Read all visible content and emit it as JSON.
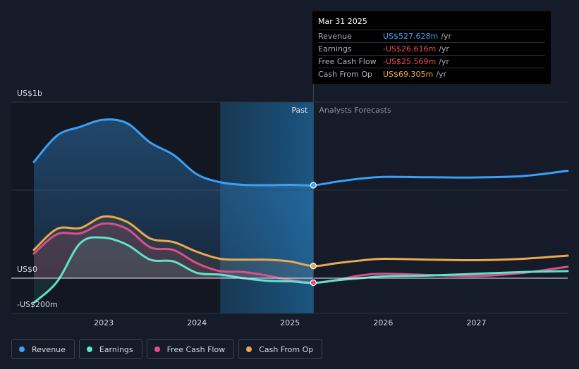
{
  "tooltip": {
    "date": "Mar 31 2025",
    "rows": [
      {
        "label": "Revenue",
        "value": "US$527.628m",
        "unit": "/yr",
        "color": "#3ba0f5"
      },
      {
        "label": "Earnings",
        "value": "-US$26.616m",
        "unit": "/yr",
        "color": "#f04e4e"
      },
      {
        "label": "Free Cash Flow",
        "value": "-US$25.569m",
        "unit": "/yr",
        "color": "#f04e4e"
      },
      {
        "label": "Cash From Op",
        "value": "US$69.305m",
        "unit": "/yr",
        "color": "#e9a94e"
      }
    ]
  },
  "legend": [
    {
      "label": "Revenue",
      "color": "#3ba0f5"
    },
    {
      "label": "Earnings",
      "color": "#5fe3c9"
    },
    {
      "label": "Free Cash Flow",
      "color": "#d9508a"
    },
    {
      "label": "Cash From Op",
      "color": "#e9a94e"
    }
  ],
  "chart_data": {
    "type": "line",
    "ylim": [
      -200,
      1000
    ],
    "xlim": [
      2022.25,
      2027.98
    ],
    "y_labels": [
      {
        "value": 1000,
        "text": "US$1b"
      },
      {
        "value": 0,
        "text": "US$0"
      },
      {
        "value": -200,
        "text": "-US$200m"
      }
    ],
    "x_ticks": [
      {
        "value": 2023,
        "text": "2023"
      },
      {
        "value": 2024,
        "text": "2024"
      },
      {
        "value": 2025,
        "text": "2025"
      },
      {
        "value": 2026,
        "text": "2026"
      },
      {
        "value": 2027,
        "text": "2027"
      }
    ],
    "past_label": "Past",
    "forecast_label": "Analysts Forecasts",
    "past_region_start": 2024.25,
    "divider_x": 2025.25,
    "series": [
      {
        "name": "Revenue",
        "color": "#3ba0f5",
        "fill": true,
        "points": [
          [
            2022.25,
            660
          ],
          [
            2022.5,
            810
          ],
          [
            2022.75,
            860
          ],
          [
            2023.0,
            900
          ],
          [
            2023.25,
            880
          ],
          [
            2023.5,
            770
          ],
          [
            2023.75,
            700
          ],
          [
            2024.0,
            590
          ],
          [
            2024.25,
            545
          ],
          [
            2024.5,
            530
          ],
          [
            2024.75,
            528
          ],
          [
            2025.0,
            530
          ],
          [
            2025.25,
            528
          ],
          [
            2025.5,
            548
          ],
          [
            2025.75,
            565
          ],
          [
            2026.0,
            575
          ],
          [
            2026.5,
            573
          ],
          [
            2027.0,
            572
          ],
          [
            2027.5,
            580
          ],
          [
            2027.98,
            610
          ]
        ]
      },
      {
        "name": "Cash From Op",
        "color": "#e9a94e",
        "fill": true,
        "points": [
          [
            2022.25,
            160
          ],
          [
            2022.5,
            280
          ],
          [
            2022.75,
            285
          ],
          [
            2023.0,
            350
          ],
          [
            2023.25,
            320
          ],
          [
            2023.5,
            225
          ],
          [
            2023.75,
            205
          ],
          [
            2024.0,
            150
          ],
          [
            2024.25,
            110
          ],
          [
            2024.5,
            105
          ],
          [
            2024.75,
            105
          ],
          [
            2025.0,
            95
          ],
          [
            2025.25,
            69
          ],
          [
            2025.5,
            85
          ],
          [
            2025.75,
            100
          ],
          [
            2026.0,
            110
          ],
          [
            2026.5,
            105
          ],
          [
            2027.0,
            102
          ],
          [
            2027.5,
            110
          ],
          [
            2027.98,
            128
          ]
        ]
      },
      {
        "name": "Free Cash Flow",
        "color": "#d9508a",
        "fill": true,
        "points": [
          [
            2022.25,
            140
          ],
          [
            2022.5,
            250
          ],
          [
            2022.75,
            255
          ],
          [
            2023.0,
            310
          ],
          [
            2023.25,
            280
          ],
          [
            2023.5,
            175
          ],
          [
            2023.75,
            160
          ],
          [
            2024.0,
            85
          ],
          [
            2024.25,
            40
          ],
          [
            2024.5,
            35
          ],
          [
            2024.75,
            15
          ],
          [
            2025.0,
            -10
          ],
          [
            2025.25,
            -26
          ],
          [
            2025.5,
            -10
          ],
          [
            2025.75,
            15
          ],
          [
            2026.0,
            25
          ],
          [
            2026.5,
            18
          ],
          [
            2027.0,
            12
          ],
          [
            2027.5,
            30
          ],
          [
            2027.98,
            65
          ]
        ]
      },
      {
        "name": "Earnings",
        "color": "#5fe3c9",
        "fill": true,
        "points": [
          [
            2022.25,
            -140
          ],
          [
            2022.5,
            -20
          ],
          [
            2022.75,
            200
          ],
          [
            2023.0,
            230
          ],
          [
            2023.25,
            190
          ],
          [
            2023.5,
            105
          ],
          [
            2023.75,
            95
          ],
          [
            2024.0,
            30
          ],
          [
            2024.25,
            20
          ],
          [
            2024.5,
            0
          ],
          [
            2024.75,
            -15
          ],
          [
            2025.0,
            -18
          ],
          [
            2025.25,
            -27
          ],
          [
            2025.5,
            -12
          ],
          [
            2025.75,
            0
          ],
          [
            2026.0,
            10
          ],
          [
            2026.5,
            15
          ],
          [
            2027.0,
            25
          ],
          [
            2027.5,
            35
          ],
          [
            2027.98,
            40
          ]
        ]
      }
    ],
    "markers": [
      {
        "series": "Revenue",
        "x": 2025.25,
        "y": 528
      },
      {
        "series": "Cash From Op",
        "x": 2025.25,
        "y": 69
      },
      {
        "series": "Free Cash Flow",
        "x": 2025.25,
        "y": -26
      }
    ]
  }
}
